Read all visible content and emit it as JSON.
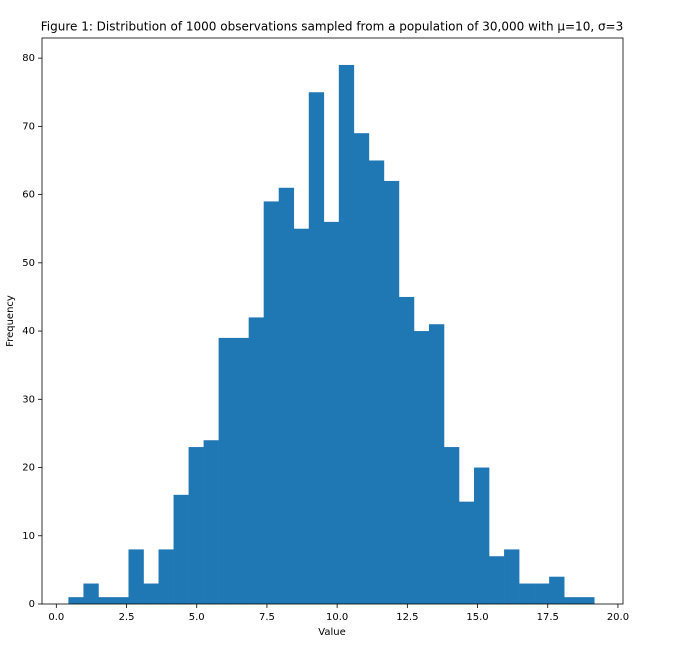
{
  "chart_data": {
    "type": "histogram",
    "title": "Figure 1: Distribution of 1000 observations sampled from a population of 30,000 with μ=10, σ=3",
    "xlabel": "Value",
    "ylabel": "Frequency",
    "color": "#1f77b4",
    "bins": [
      0.43,
      0.965,
      1.5,
      2.035,
      2.57,
      3.105,
      3.64,
      4.175,
      4.71,
      5.245,
      5.78,
      6.315,
      6.85,
      7.385,
      7.92,
      8.455,
      8.99,
      9.525,
      10.06,
      10.595,
      11.13,
      11.665,
      12.2,
      12.735,
      13.27,
      13.805,
      14.34,
      14.875,
      15.41,
      15.945,
      16.48,
      17.015,
      17.55,
      18.085,
      18.62,
      19.155
    ],
    "values": [
      1,
      3,
      1,
      1,
      8,
      3,
      8,
      16,
      23,
      24,
      39,
      39,
      42,
      59,
      61,
      55,
      75,
      56,
      79,
      69,
      65,
      62,
      45,
      40,
      41,
      23,
      15,
      20,
      7,
      8,
      3,
      3,
      4,
      1,
      1
    ],
    "xlim": [
      -0.51,
      20.18
    ],
    "ylim": [
      0,
      82.95
    ],
    "xticks": [
      {
        "value": 0,
        "label": "0.0"
      },
      {
        "value": 2.5,
        "label": "2.5"
      },
      {
        "value": 5,
        "label": "5.0"
      },
      {
        "value": 7.5,
        "label": "7.5"
      },
      {
        "value": 10,
        "label": "10.0"
      },
      {
        "value": 12.5,
        "label": "12.5"
      },
      {
        "value": 15,
        "label": "15.0"
      },
      {
        "value": 17.5,
        "label": "17.5"
      },
      {
        "value": 20,
        "label": "20.0"
      }
    ],
    "yticks": [
      0,
      10,
      20,
      30,
      40,
      50,
      60,
      70,
      80
    ]
  }
}
